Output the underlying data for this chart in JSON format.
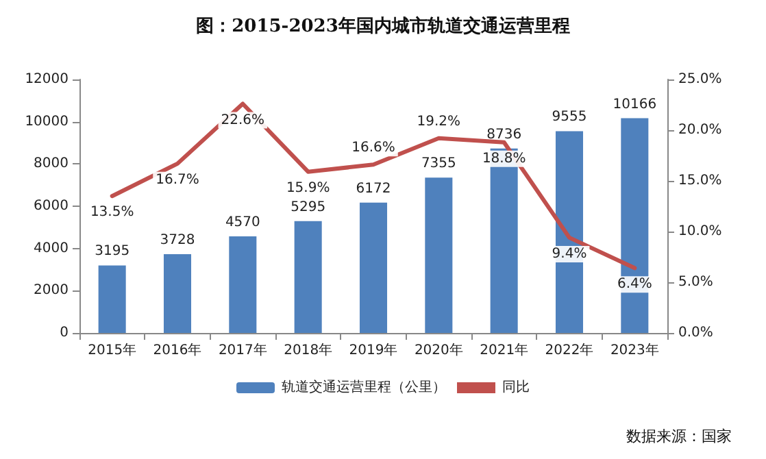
{
  "chart_data": {
    "type": "bar",
    "title": "图：2015-2023年国内城市轨道交通运营里程",
    "categories": [
      "2015年",
      "2016年",
      "2017年",
      "2018年",
      "2019年",
      "2020年",
      "2021年",
      "2022年",
      "2023年"
    ],
    "series": [
      {
        "name": "轨道交通运营里程（公里）",
        "color": "#4f81bd",
        "values": [
          3195,
          3728,
          4570,
          5295,
          6172,
          7355,
          8736,
          9555,
          10166
        ]
      },
      {
        "name": "同比",
        "type": "line",
        "axis": "y2",
        "color": "#c0504d",
        "values": [
          13.5,
          16.7,
          22.6,
          15.9,
          16.6,
          19.2,
          18.8,
          9.4,
          6.4
        ],
        "value_labels": [
          "13.5%",
          "16.7%",
          "22.6%",
          "15.9%",
          "16.6%",
          "19.2%",
          "18.8%",
          "9.4%",
          "6.4%"
        ]
      }
    ],
    "data_labels": true,
    "ylim": [
      0,
      12000
    ],
    "yticks": [
      0,
      2000,
      4000,
      6000,
      8000,
      10000,
      12000
    ],
    "y2lim": [
      0,
      25
    ],
    "y2ticks": [
      {
        "value": 0,
        "label": "0.0%"
      },
      {
        "value": 5,
        "label": "5.0%"
      },
      {
        "value": 10,
        "label": "10.0%"
      },
      {
        "value": 15,
        "label": "15.0%"
      },
      {
        "value": 20,
        "label": "20.0%"
      },
      {
        "value": 25,
        "label": "25.0%"
      }
    ],
    "grid": false,
    "legend": "bottom",
    "marker": "none",
    "line_style": "solid",
    "annotations": [
      "数据来源：国家"
    ]
  }
}
